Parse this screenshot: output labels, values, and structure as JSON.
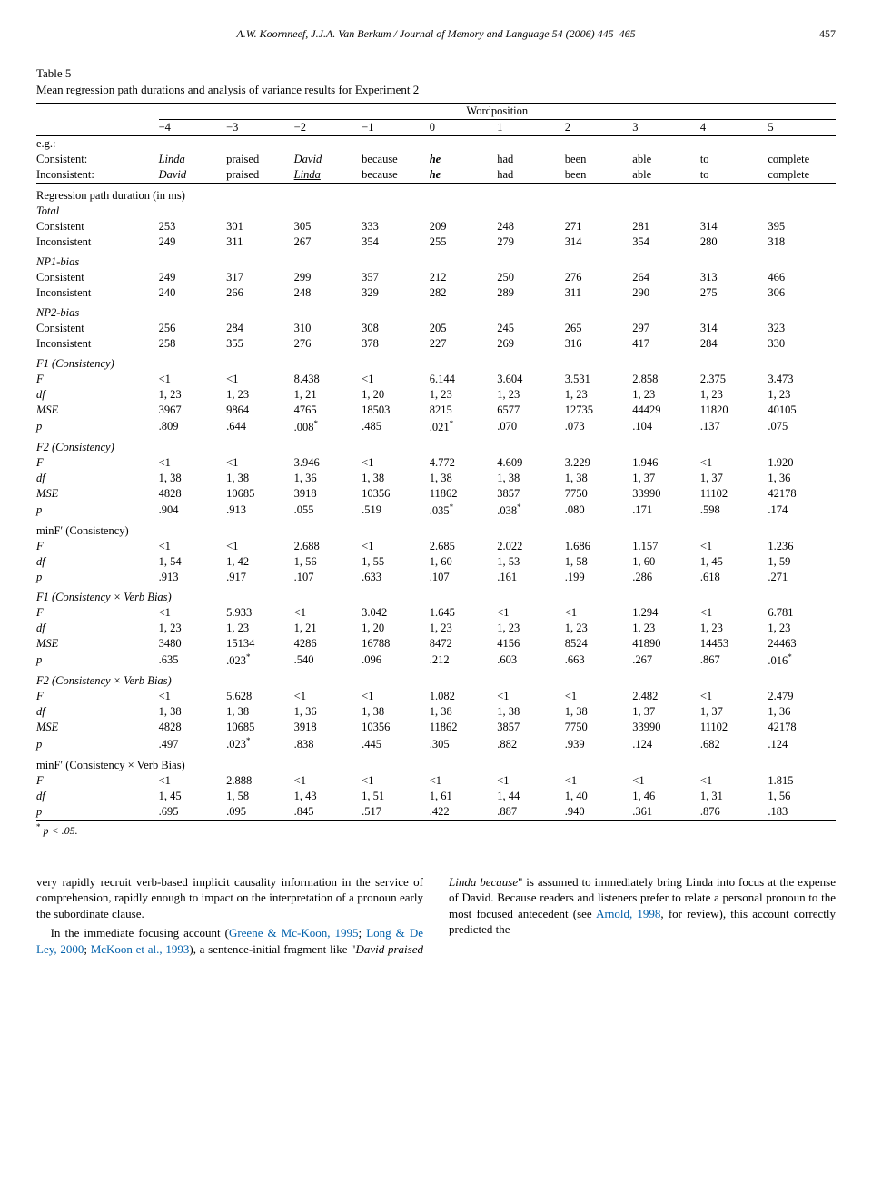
{
  "header": {
    "citation": "A.W. Koornneef, J.J.A. Van Berkum / Journal of Memory and Language 54 (2006) 445–465",
    "page": "457"
  },
  "table": {
    "label": "Table 5",
    "caption": "Mean regression path durations and analysis of variance results for Experiment 2",
    "super_header": "Wordposition",
    "positions": [
      "−4",
      "−3",
      "−2",
      "−1",
      "0",
      "1",
      "2",
      "3",
      "4",
      "5"
    ],
    "eg_label": "e.g.:",
    "example_rows": [
      {
        "label": "Consistent:",
        "cells": [
          {
            "t": "Linda",
            "i": true
          },
          {
            "t": "praised"
          },
          {
            "t": "David",
            "i": true,
            "u": true
          },
          {
            "t": "because"
          },
          {
            "t": "he",
            "b": true,
            "i": true
          },
          {
            "t": "had"
          },
          {
            "t": "been"
          },
          {
            "t": "able"
          },
          {
            "t": "to"
          },
          {
            "t": "complete"
          }
        ]
      },
      {
        "label": "Inconsistent:",
        "cells": [
          {
            "t": "David",
            "i": true
          },
          {
            "t": "praised"
          },
          {
            "t": "Linda",
            "i": true,
            "u": true
          },
          {
            "t": "because"
          },
          {
            "t": "he",
            "b": true,
            "i": true
          },
          {
            "t": "had"
          },
          {
            "t": "been"
          },
          {
            "t": "able"
          },
          {
            "t": "to"
          },
          {
            "t": "complete"
          }
        ]
      }
    ],
    "groups": [
      {
        "title": "Regression path duration (in ms)",
        "subtitle": "Total",
        "title_italic": false,
        "subtitle_italic": true,
        "rows": [
          {
            "label": "Consistent",
            "v": [
              "253",
              "301",
              "305",
              "333",
              "209",
              "248",
              "271",
              "281",
              "314",
              "395"
            ]
          },
          {
            "label": "Inconsistent",
            "v": [
              "249",
              "311",
              "267",
              "354",
              "255",
              "279",
              "314",
              "354",
              "280",
              "318"
            ]
          }
        ]
      },
      {
        "title": "NP1-bias",
        "title_italic": true,
        "rows": [
          {
            "label": "Consistent",
            "v": [
              "249",
              "317",
              "299",
              "357",
              "212",
              "250",
              "276",
              "264",
              "313",
              "466"
            ]
          },
          {
            "label": "Inconsistent",
            "v": [
              "240",
              "266",
              "248",
              "329",
              "282",
              "289",
              "311",
              "290",
              "275",
              "306"
            ]
          }
        ]
      },
      {
        "title": "NP2-bias",
        "title_italic": true,
        "rows": [
          {
            "label": "Consistent",
            "v": [
              "256",
              "284",
              "310",
              "308",
              "205",
              "245",
              "265",
              "297",
              "314",
              "323"
            ]
          },
          {
            "label": "Inconsistent",
            "v": [
              "258",
              "355",
              "276",
              "378",
              "227",
              "269",
              "316",
              "417",
              "284",
              "330"
            ]
          }
        ]
      },
      {
        "title": "F1 (Consistency)",
        "title_italic": true,
        "rows": [
          {
            "label": "F",
            "label_italic": true,
            "v": [
              "<1",
              "<1",
              "8.438",
              "<1",
              "6.144",
              "3.604",
              "3.531",
              "2.858",
              "2.375",
              "3.473"
            ]
          },
          {
            "label": "df",
            "label_italic": true,
            "v": [
              "1, 23",
              "1, 23",
              "1, 21",
              "1, 20",
              "1, 23",
              "1, 23",
              "1, 23",
              "1, 23",
              "1, 23",
              "1, 23"
            ]
          },
          {
            "label": "MSE",
            "label_italic": true,
            "v": [
              "3967",
              "9864",
              "4765",
              "18503",
              "8215",
              "6577",
              "12735",
              "44429",
              "11820",
              "40105"
            ]
          },
          {
            "label": "p",
            "label_italic": true,
            "v": [
              ".809",
              ".644",
              ".008*",
              ".485",
              ".021*",
              ".070",
              ".073",
              ".104",
              ".137",
              ".075"
            ]
          }
        ]
      },
      {
        "title": "F2 (Consistency)",
        "title_italic": true,
        "rows": [
          {
            "label": "F",
            "label_italic": true,
            "v": [
              "<1",
              "<1",
              "3.946",
              "<1",
              "4.772",
              "4.609",
              "3.229",
              "1.946",
              "<1",
              "1.920"
            ]
          },
          {
            "label": "df",
            "label_italic": true,
            "v": [
              "1, 38",
              "1, 38",
              "1, 36",
              "1, 38",
              "1, 38",
              "1, 38",
              "1, 38",
              "1, 37",
              "1, 37",
              "1, 36"
            ]
          },
          {
            "label": "MSE",
            "label_italic": true,
            "v": [
              "4828",
              "10685",
              "3918",
              "10356",
              "11862",
              "3857",
              "7750",
              "33990",
              "11102",
              "42178"
            ]
          },
          {
            "label": "p",
            "label_italic": true,
            "v": [
              ".904",
              ".913",
              ".055",
              ".519",
              ".035*",
              ".038*",
              ".080",
              ".171",
              ".598",
              ".174"
            ]
          }
        ]
      },
      {
        "title": "minF′ (Consistency)",
        "title_italic": false,
        "rows": [
          {
            "label": "F",
            "label_italic": true,
            "v": [
              "<1",
              "<1",
              "2.688",
              "<1",
              "2.685",
              "2.022",
              "1.686",
              "1.157",
              "<1",
              "1.236"
            ]
          },
          {
            "label": "df",
            "label_italic": true,
            "v": [
              "1, 54",
              "1, 42",
              "1, 56",
              "1, 55",
              "1, 60",
              "1, 53",
              "1, 58",
              "1, 60",
              "1, 45",
              "1, 59"
            ]
          },
          {
            "label": "p",
            "label_italic": true,
            "v": [
              ".913",
              ".917",
              ".107",
              ".633",
              ".107",
              ".161",
              ".199",
              ".286",
              ".618",
              ".271"
            ]
          }
        ]
      },
      {
        "title": "F1 (Consistency × Verb Bias)",
        "title_italic": true,
        "rows": [
          {
            "label": "F",
            "label_italic": true,
            "v": [
              "<1",
              "5.933",
              "<1",
              "3.042",
              "1.645",
              "<1",
              "<1",
              "1.294",
              "<1",
              "6.781"
            ]
          },
          {
            "label": "df",
            "label_italic": true,
            "v": [
              "1, 23",
              "1, 23",
              "1, 21",
              "1, 20",
              "1, 23",
              "1, 23",
              "1, 23",
              "1, 23",
              "1, 23",
              "1, 23"
            ]
          },
          {
            "label": "MSE",
            "label_italic": true,
            "v": [
              "3480",
              "15134",
              "4286",
              "16788",
              "8472",
              "4156",
              "8524",
              "41890",
              "14453",
              "24463"
            ]
          },
          {
            "label": "p",
            "label_italic": true,
            "v": [
              ".635",
              ".023*",
              ".540",
              ".096",
              ".212",
              ".603",
              ".663",
              ".267",
              ".867",
              ".016*"
            ]
          }
        ]
      },
      {
        "title": "F2 (Consistency × Verb Bias)",
        "title_italic": true,
        "rows": [
          {
            "label": "F",
            "label_italic": true,
            "v": [
              "<1",
              "5.628",
              "<1",
              "<1",
              "1.082",
              "<1",
              "<1",
              "2.482",
              "<1",
              "2.479"
            ]
          },
          {
            "label": "df",
            "label_italic": true,
            "v": [
              "1, 38",
              "1, 38",
              "1, 36",
              "1, 38",
              "1, 38",
              "1, 38",
              "1, 38",
              "1, 37",
              "1, 37",
              "1, 36"
            ]
          },
          {
            "label": "MSE",
            "label_italic": true,
            "v": [
              "4828",
              "10685",
              "3918",
              "10356",
              "11862",
              "3857",
              "7750",
              "33990",
              "11102",
              "42178"
            ]
          },
          {
            "label": "p",
            "label_italic": true,
            "v": [
              ".497",
              ".023*",
              ".838",
              ".445",
              ".305",
              ".882",
              ".939",
              ".124",
              ".682",
              ".124"
            ]
          }
        ]
      },
      {
        "title": "minF′ (Consistency × Verb Bias)",
        "title_italic": false,
        "rows": [
          {
            "label": "F",
            "label_italic": true,
            "v": [
              "<1",
              "2.888",
              "<1",
              "<1",
              "<1",
              "<1",
              "<1",
              "<1",
              "<1",
              "1.815"
            ]
          },
          {
            "label": "df",
            "label_italic": true,
            "v": [
              "1, 45",
              "1, 58",
              "1, 43",
              "1, 51",
              "1, 61",
              "1, 44",
              "1, 40",
              "1, 46",
              "1, 31",
              "1, 56"
            ]
          },
          {
            "label": "p",
            "label_italic": true,
            "v": [
              ".695",
              ".095",
              ".845",
              ".517",
              ".422",
              ".887",
              ".940",
              ".361",
              ".876",
              ".183"
            ]
          }
        ]
      }
    ],
    "footnote_marker": "*",
    "footnote_text": "p < .05."
  },
  "body": {
    "p1": "very rapidly recruit verb-based implicit causality information in the service of comprehension, rapidly enough to impact on the interpretation of a pronoun early the subordinate clause.",
    "p2a": "In the immediate focusing account (",
    "p2_link1": "Greene & Mc-Koon, 1995",
    "p2b": "; ",
    "p2_link2": "Long & De Ley, 2000",
    "p2c": "; ",
    "p2_link3": "McKoon",
    "p3_link1": "et al., 1993",
    "p3a": "), a sentence-initial fragment like \"",
    "p3_quote": "David praised Linda because",
    "p3b": "\" is assumed to immediately bring Linda into focus at the expense of David. Because readers and listeners prefer to relate a personal pronoun to the most focused antecedent (see ",
    "p3_link2": "Arnold, 1998",
    "p3c": ", for review), this account correctly predicted the"
  }
}
